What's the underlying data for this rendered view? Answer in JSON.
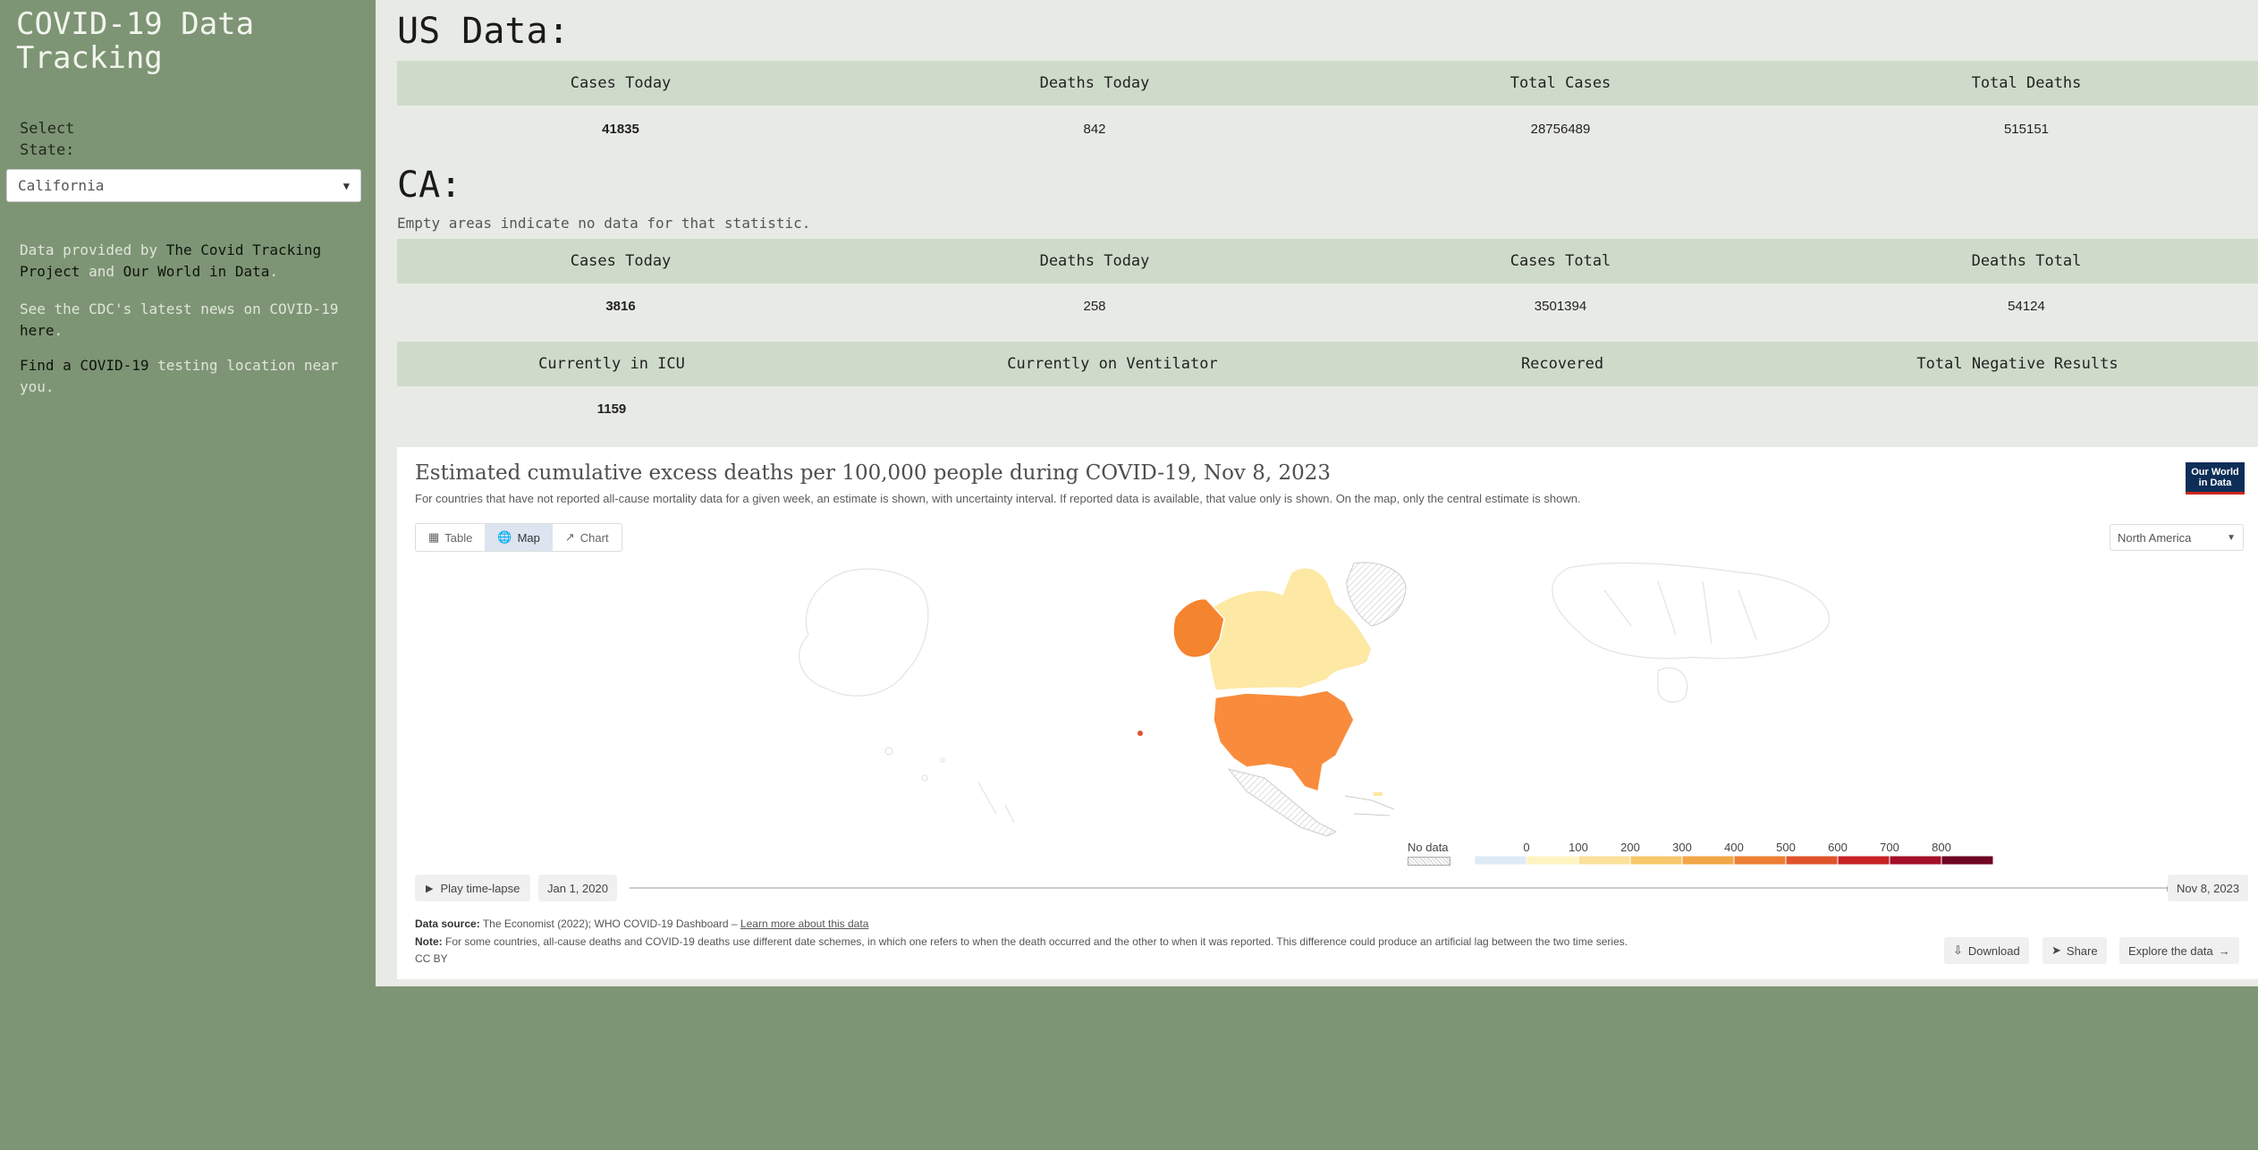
{
  "sidebar": {
    "title": "COVID-19 Data Tracking",
    "select_label": "Select State:",
    "selected_state": "California",
    "provided_prefix": "Data provided by ",
    "provider1": "The Covid Tracking Project",
    "provided_and": " and ",
    "provider2": "Our World in Data",
    "provided_end": ".",
    "cdc_prefix": "See the CDC's latest news on COVID-19 ",
    "cdc_link": "here",
    "cdc_end": ".",
    "testing_link": "Find a COVID-19",
    "testing_suffix": " testing location near you."
  },
  "us": {
    "heading": "US Data:",
    "headers": [
      "Cases Today",
      "Deaths Today",
      "Total Cases",
      "Total Deaths"
    ],
    "values": [
      "41835",
      "842",
      "28756489",
      "515151"
    ]
  },
  "ca": {
    "heading": "CA:",
    "note": "Empty areas indicate no data for that statistic.",
    "headers1": [
      "Cases Today",
      "Deaths Today",
      "Cases Total",
      "Deaths Total"
    ],
    "values1": [
      "3816",
      "258",
      "3501394",
      "54124"
    ],
    "headers2": [
      "Currently in ICU",
      "Currently on Ventilator",
      "Recovered",
      "Total Negative Results"
    ],
    "values2": [
      "1159",
      "",
      "",
      ""
    ]
  },
  "embed": {
    "title": "Estimated cumulative excess deaths per 100,000 people during COVID-19, Nov 8, 2023",
    "subtitle": "For countries that have not reported all-cause mortality data for a given week, an estimate is shown, with uncertainty interval. If reported data is available, that value only is shown. On the map, only the central estimate is shown.",
    "logo": "Our World in Data",
    "tabs": [
      "Table",
      "Map",
      "Chart"
    ],
    "active_tab": "Map",
    "region": "North America",
    "legend": {
      "no_data": "No data",
      "ticks": [
        "0",
        "100",
        "200",
        "300",
        "400",
        "500",
        "600",
        "700",
        "800"
      ],
      "colors": [
        "#deeaf5",
        "#fff3c2",
        "#fbe09a",
        "#f6c76b",
        "#f2a647",
        "#ec7f33",
        "#e0532a",
        "#c82226",
        "#a40f28",
        "#6f0522"
      ]
    },
    "play_label": "Play time-lapse",
    "start_date": "Jan 1, 2020",
    "end_date": "Nov 8, 2023",
    "timeline_position": 1.0,
    "source_label": "Data source:",
    "source_text": " The Economist (2022); WHO COVID-19 Dashboard – ",
    "source_link": "Learn more about this data",
    "note_label": "Note:",
    "note_text": " For some countries, all-cause deaths and COVID-19 deaths use different date schemes, in which one refers to when the death occurred and the other to when it was reported. This difference could produce an artificial lag between the two time series.",
    "license": "CC BY",
    "download": "Download",
    "share": "Share",
    "explore": "Explore the data"
  },
  "colors": {
    "sidebar_bg": "#7e9575",
    "main_bg": "#e8ebe5",
    "header_row": "#cfdbca",
    "usa": "#f98c3c",
    "alaska": "#f5842f",
    "canada": "#fde8a4",
    "greenland": "#fde8a4"
  }
}
